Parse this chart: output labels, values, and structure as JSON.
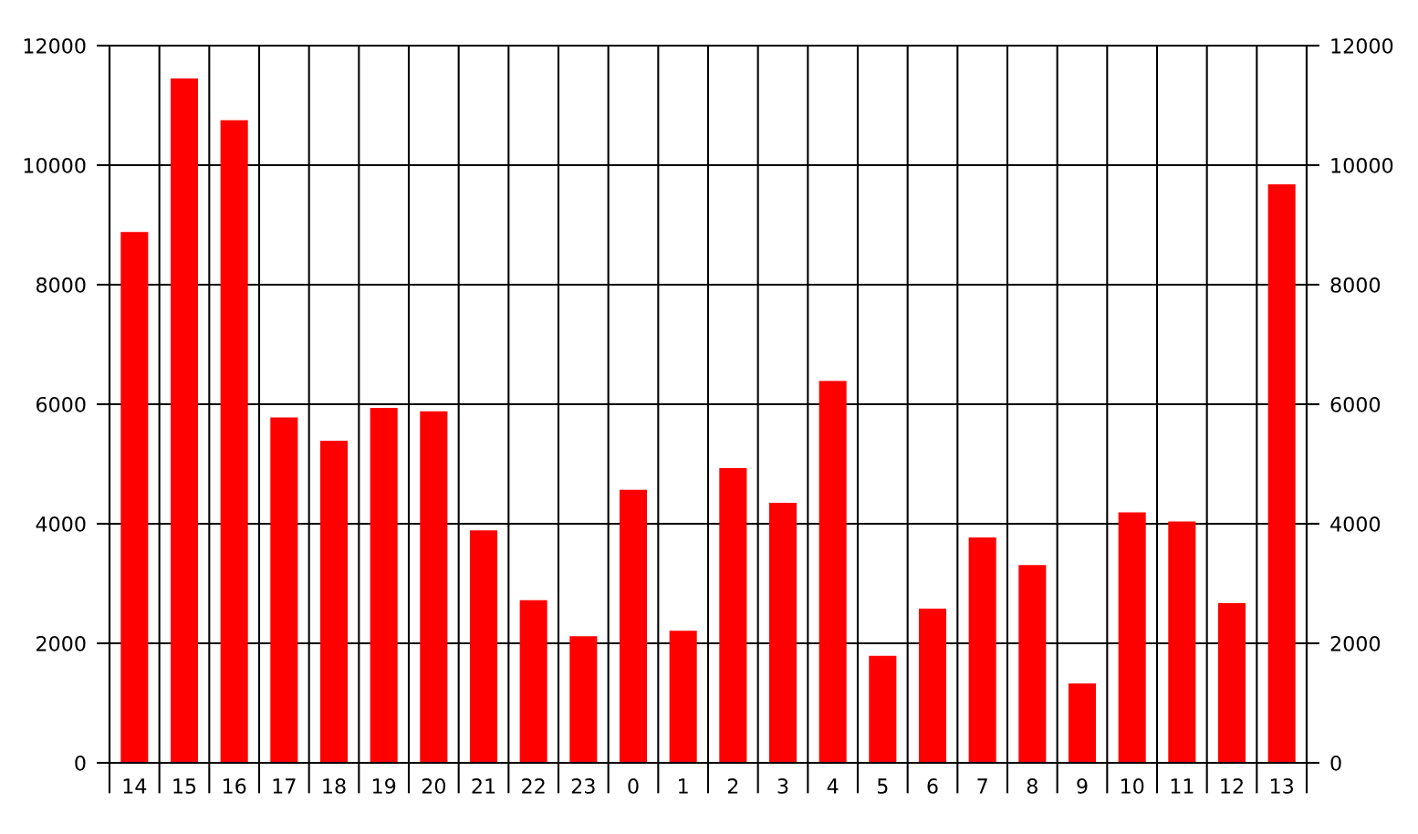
{
  "chart_data": {
    "type": "bar",
    "categories": [
      "14",
      "15",
      "16",
      "17",
      "18",
      "19",
      "20",
      "21",
      "22",
      "23",
      "0",
      "1",
      "2",
      "3",
      "4",
      "5",
      "6",
      "7",
      "8",
      "9",
      "10",
      "11",
      "12",
      "13"
    ],
    "values": [
      8880,
      11450,
      10750,
      5780,
      5390,
      5940,
      5880,
      3890,
      2720,
      2120,
      4570,
      2210,
      4930,
      4350,
      6390,
      1790,
      2580,
      3770,
      3310,
      1330,
      4190,
      4040,
      2670,
      9680
    ],
    "color": "#ff0000",
    "ylim": [
      0,
      12000
    ],
    "yticks": [
      0,
      2000,
      4000,
      6000,
      8000,
      10000,
      12000
    ],
    "y2lim": [
      0,
      12000
    ],
    "y2ticks": [
      0,
      2000,
      4000,
      6000,
      8000,
      10000,
      12000
    ],
    "grid": true
  }
}
